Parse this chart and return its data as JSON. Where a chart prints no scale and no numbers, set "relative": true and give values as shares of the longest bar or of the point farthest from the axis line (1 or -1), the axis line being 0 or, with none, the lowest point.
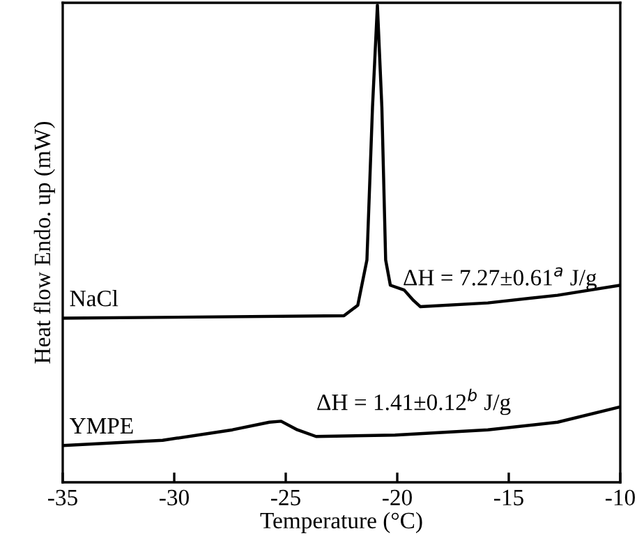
{
  "chart_data": {
    "type": "line",
    "relative": true,
    "xlabel": "Temperature (°C)",
    "ylabel": "Heat flow Endo. up (mW)",
    "xlim": [
      -35,
      -10
    ],
    "xticks": [
      -35,
      -30,
      -25,
      -20,
      -15,
      -10
    ],
    "grid": false,
    "legend": false,
    "marker": "none",
    "line_style": "solid",
    "series": [
      {
        "name": "NaCl",
        "color": "#000000",
        "x": [
          -35,
          -22.39,
          -21.77,
          -21.36,
          -21.11,
          -20.89,
          -20.69,
          -20.52,
          -20.31,
          -19.69,
          -19.27,
          -18.96,
          -15.94,
          -12.81,
          -10
        ],
        "values": [
          0.344,
          0.349,
          0.371,
          0.466,
          0.786,
          1,
          0.786,
          0.466,
          0.413,
          0.403,
          0.381,
          0.368,
          0.376,
          0.392,
          0.413
        ]
      },
      {
        "name": "YMPE",
        "color": "#000000",
        "x": [
          -35,
          -30.52,
          -27.39,
          -25.73,
          -25.21,
          -24.48,
          -23.64,
          -20.1,
          -15.94,
          -12.81,
          -10
        ],
        "values": [
          0.077,
          0.088,
          0.11,
          0.126,
          0.128,
          0.11,
          0.096,
          0.099,
          0.11,
          0.126,
          0.158
        ]
      }
    ],
    "annotations": [
      "ΔH = 7.27±0.61$^{a}$ J/g",
      "ΔH = 1.41±0.12$^{b}$ J/g"
    ]
  }
}
